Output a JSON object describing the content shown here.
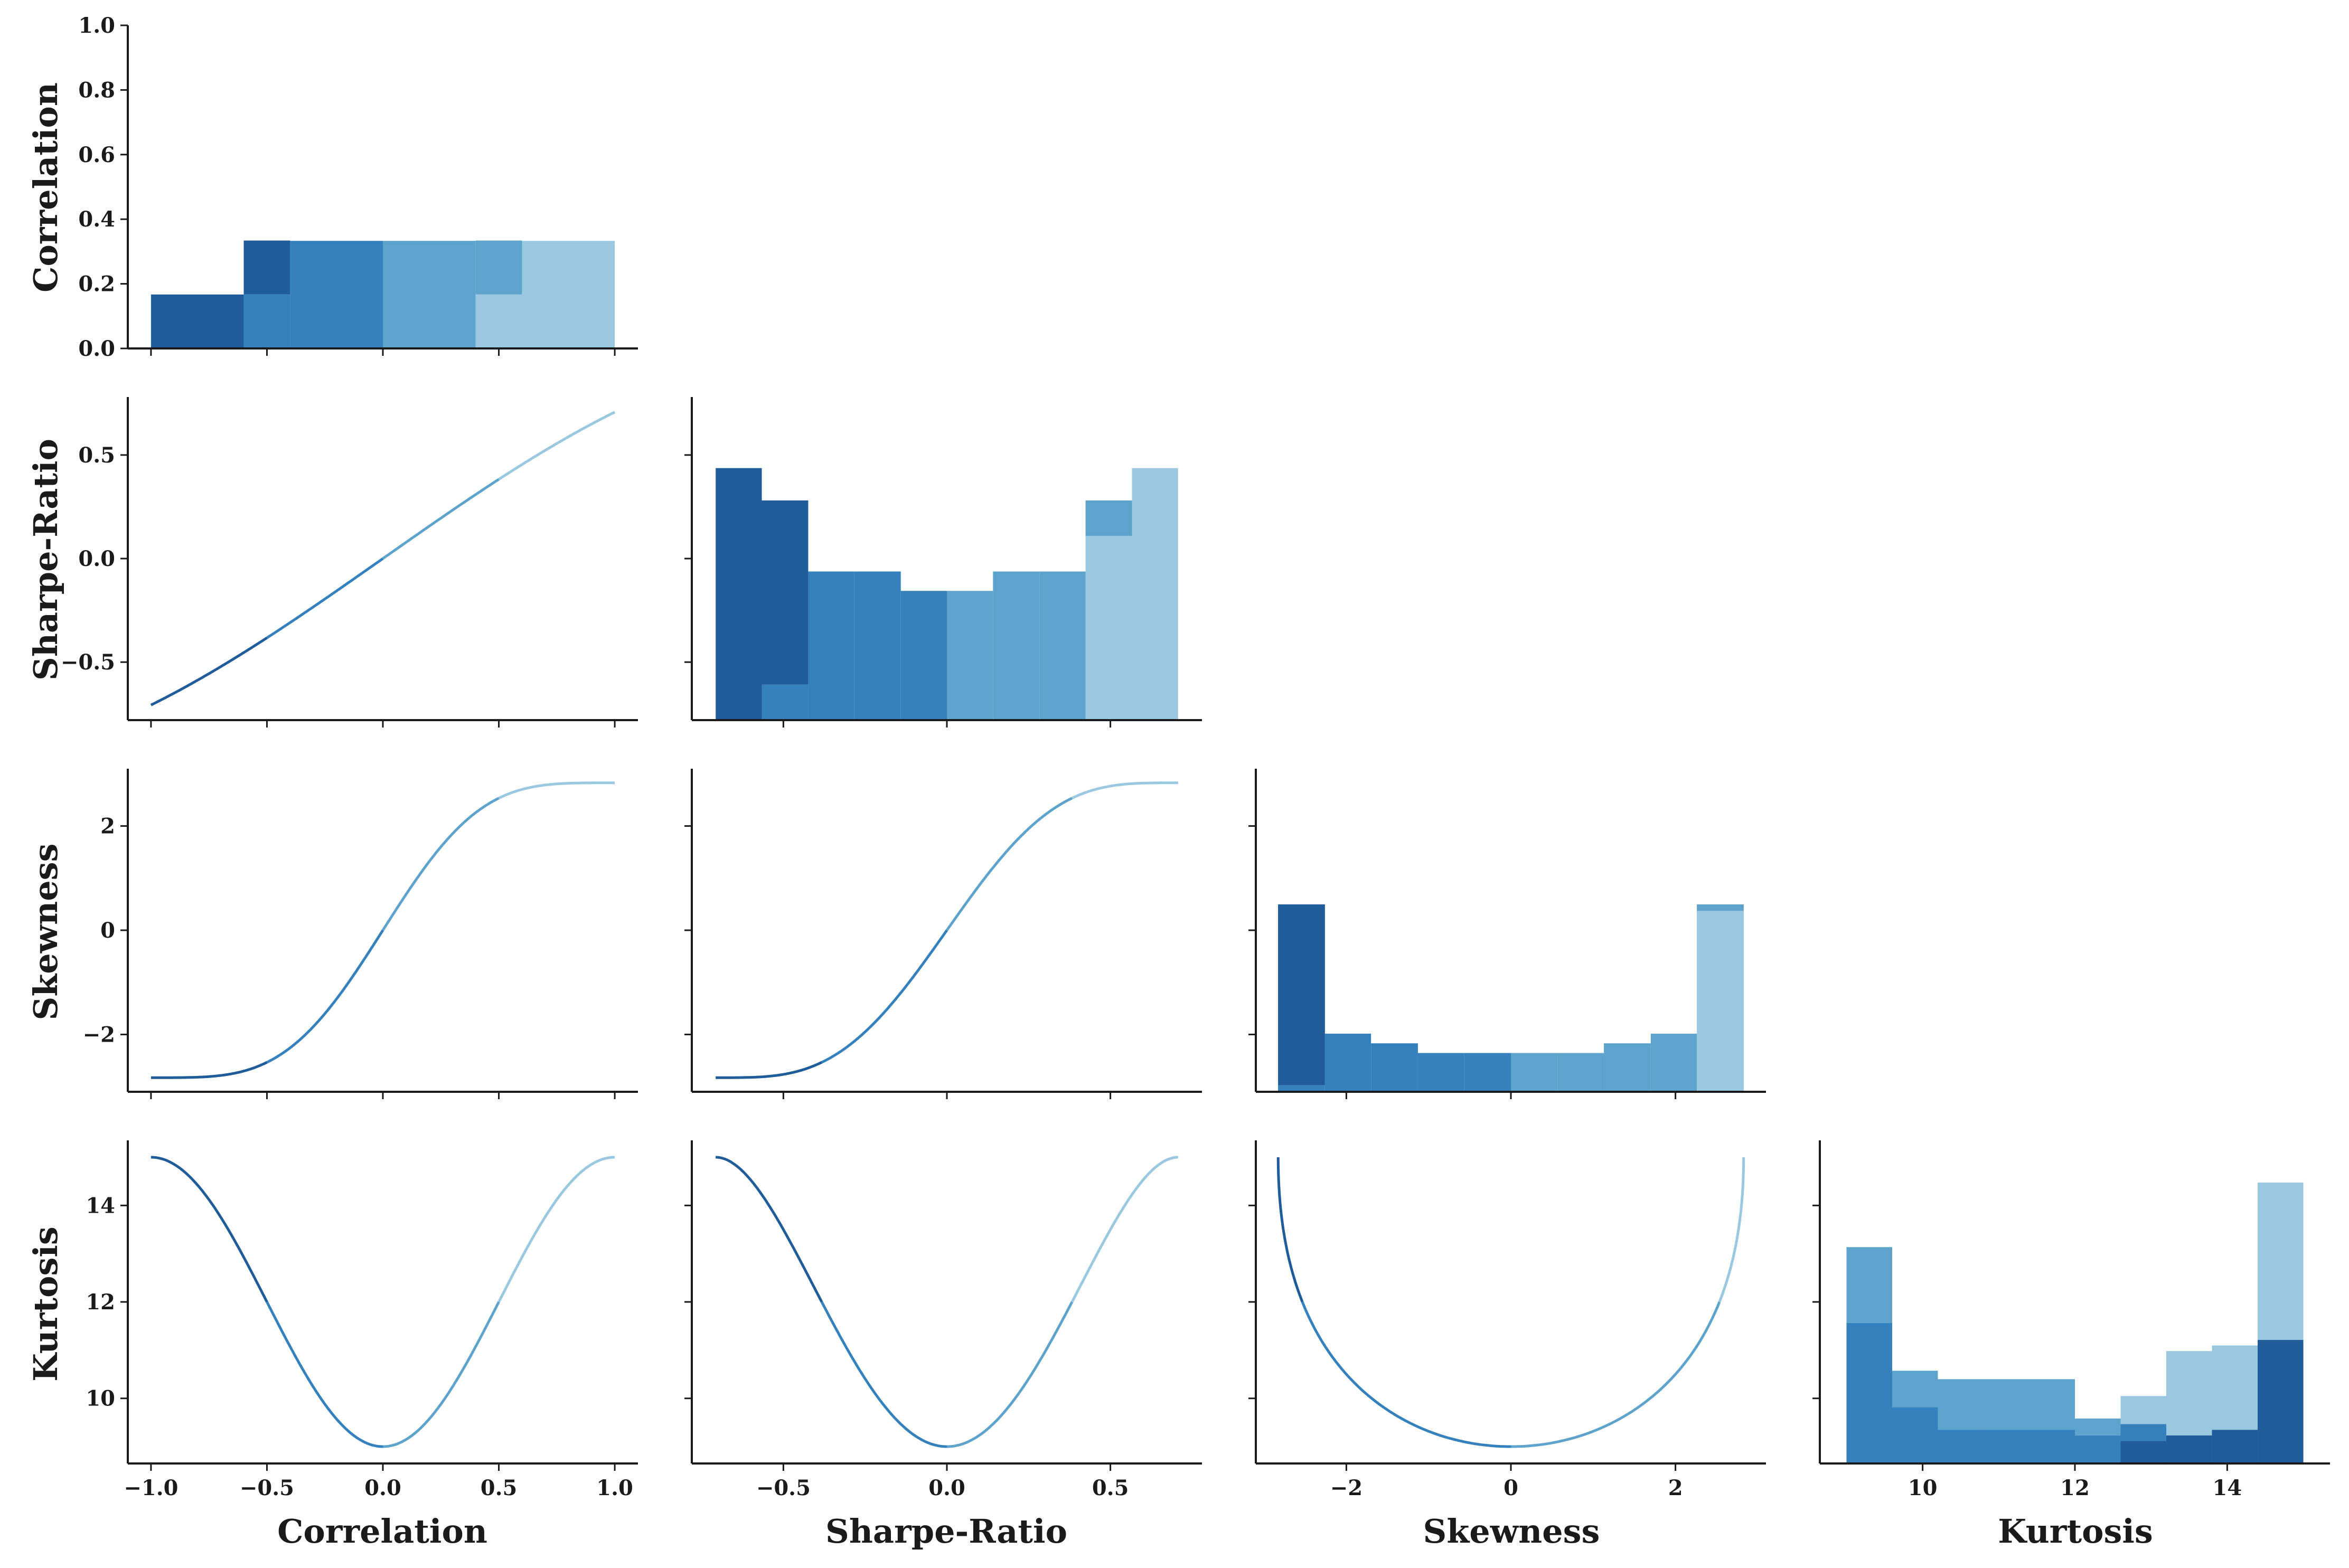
{
  "chart_data": {
    "type": "pairplot",
    "variables": [
      "Correlation",
      "Sharpe-Ratio",
      "Skewness",
      "Kurtosis"
    ],
    "palette": [
      "#1f5c99",
      "#3581bd",
      "#5ea3cc",
      "#9ac8e0"
    ],
    "segment_breaks_correlation": [
      -0.5,
      0.0,
      0.5
    ],
    "axes": {
      "Correlation": {
        "lim": [
          -1.1,
          1.1
        ],
        "ticks": [
          -1.0,
          -0.5,
          0.0,
          0.5,
          1.0
        ],
        "tick_labels": [
          "−1.0",
          "−0.5",
          "0.0",
          "0.5",
          "1.0"
        ]
      },
      "Sharpe-Ratio": {
        "lim": [
          -0.78,
          0.78
        ],
        "ticks": [
          -0.5,
          0.0,
          0.5
        ],
        "tick_labels": [
          "−0.5",
          "0.0",
          "0.5"
        ]
      },
      "Skewness": {
        "lim": [
          -3.1,
          3.1
        ],
        "ticks": [
          -2,
          0,
          2
        ],
        "tick_labels": [
          "−2",
          "0",
          "2"
        ]
      },
      "Kurtosis": {
        "lim": [
          8.65,
          15.35
        ],
        "ticks": [
          10,
          12,
          14
        ],
        "tick_labels": [
          "10",
          "12",
          "14"
        ]
      }
    },
    "diag_ylim": {
      "Correlation": [
        0,
        1.0
      ],
      "Correlation_ticks": [
        0.0,
        0.2,
        0.4,
        0.6,
        0.8,
        1.0
      ],
      "Correlation_tick_labels": [
        "0.0",
        "0.2",
        "0.4",
        "0.6",
        "0.8",
        "1.0"
      ]
    },
    "histograms": {
      "Correlation": {
        "bins": [
          [
            -1.0,
            -0.6
          ],
          [
            -0.6,
            -0.4
          ],
          [
            -0.4,
            0.0
          ],
          [
            0.0,
            0.4
          ],
          [
            0.4,
            0.6
          ],
          [
            0.6,
            1.0
          ]
        ],
        "stack_order": [
          3,
          2,
          1,
          0
        ],
        "counts": [
          [
            0.167,
            0.167,
            0,
            0,
            0,
            0
          ],
          [
            0,
            0.167,
            0.333,
            0,
            0,
            0
          ],
          [
            0,
            0,
            0,
            0.333,
            0.167,
            0
          ],
          [
            0,
            0,
            0,
            0,
            0.167,
            0.333
          ]
        ]
      },
      "Sharpe-Ratio": {
        "bins": [
          [
            -0.707,
            -0.566
          ],
          [
            -0.566,
            -0.424
          ],
          [
            -0.424,
            -0.283
          ],
          [
            -0.283,
            -0.141
          ],
          [
            -0.141,
            0.0
          ],
          [
            0.0,
            0.141
          ],
          [
            0.141,
            0.283
          ],
          [
            0.283,
            0.424
          ],
          [
            0.424,
            0.566
          ],
          [
            0.566,
            0.707
          ]
        ],
        "stack_order": [
          3,
          2,
          1,
          0
        ],
        "counts": [
          [
            0.78,
            0.57,
            0,
            0,
            0,
            0,
            0,
            0,
            0,
            0
          ],
          [
            0,
            0.11,
            0.46,
            0.46,
            0.4,
            0,
            0,
            0,
            0,
            0
          ],
          [
            0,
            0,
            0,
            0,
            0,
            0.4,
            0.46,
            0.46,
            0.11,
            0
          ],
          [
            0,
            0,
            0,
            0,
            0,
            0,
            0,
            0,
            0.57,
            0.78
          ]
        ]
      },
      "Skewness": {
        "bins": [
          [
            -2.83,
            -2.26
          ],
          [
            -2.26,
            -1.7
          ],
          [
            -1.7,
            -1.13
          ],
          [
            -1.13,
            -0.57
          ],
          [
            -0.57,
            0.0
          ],
          [
            0.0,
            0.57
          ],
          [
            0.57,
            1.13
          ],
          [
            1.13,
            1.7
          ],
          [
            1.7,
            2.26
          ],
          [
            2.26,
            2.83
          ]
        ],
        "stack_order": [
          3,
          2,
          1,
          0
        ],
        "counts": [
          [
            0.56,
            0,
            0,
            0,
            0,
            0,
            0,
            0,
            0,
            0
          ],
          [
            0.02,
            0.18,
            0.15,
            0.12,
            0.12,
            0,
            0,
            0,
            0,
            0
          ],
          [
            0,
            0,
            0,
            0,
            0,
            0.12,
            0.12,
            0.15,
            0.18,
            0.02
          ],
          [
            0,
            0,
            0,
            0,
            0,
            0,
            0,
            0,
            0,
            0.56
          ]
        ]
      },
      "Kurtosis": {
        "bins": [
          [
            9.0,
            9.6
          ],
          [
            9.6,
            10.2
          ],
          [
            10.2,
            10.8
          ],
          [
            10.8,
            11.4
          ],
          [
            11.4,
            12.0
          ],
          [
            12.0,
            12.6
          ],
          [
            12.6,
            13.2
          ],
          [
            13.2,
            13.8
          ],
          [
            13.8,
            14.4
          ],
          [
            14.4,
            15.0
          ]
        ],
        "stack_order": [
          0,
          1,
          2,
          3
        ],
        "counts": [
          [
            0,
            0,
            0,
            0,
            0,
            0,
            0.08,
            0.1,
            0.12,
            0.44
          ],
          [
            0.5,
            0.2,
            0.12,
            0.12,
            0.12,
            0.1,
            0.06,
            0,
            0,
            0
          ],
          [
            0.27,
            0.13,
            0.18,
            0.18,
            0.18,
            0.06,
            0,
            0,
            0,
            0
          ],
          [
            0,
            0,
            0,
            0,
            0,
            0,
            0.1,
            0.3,
            0.3,
            0.56
          ]
        ]
      }
    },
    "pair_relations": {
      "Sharpe-Ratio": "sin(pi/4 * Correlation)",
      "Skewness": "2*sqrt(2)*sin(pi/2 * Correlation)^3 style sigmoid",
      "Kurtosis": "9 + 6 * sin(pi/2 * Correlation)^2"
    },
    "kurtosis_hist_ylim": [
      0,
      1.15
    ]
  }
}
